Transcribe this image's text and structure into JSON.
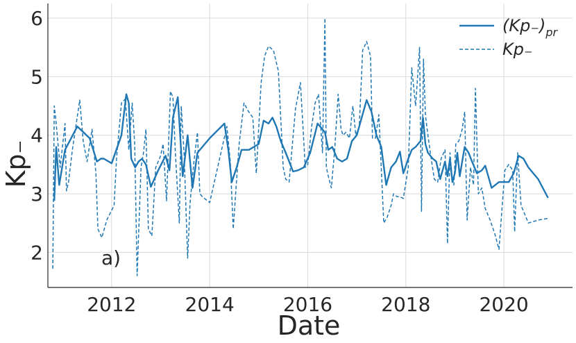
{
  "chart_data": {
    "type": "line",
    "title": "",
    "xlabel": "Date",
    "ylabel": "Kp₋",
    "xlim": [
      2010.7,
      2021.4
    ],
    "ylim": [
      1.4,
      6.25
    ],
    "xticks": [
      2012,
      2014,
      2016,
      2018,
      2020
    ],
    "xtick_labels": [
      "2012",
      "2014",
      "2016",
      "2018",
      "2020"
    ],
    "yticks": [
      2,
      3,
      4,
      5,
      6
    ],
    "ytick_labels": [
      "2",
      "3",
      "4",
      "5",
      "6"
    ],
    "grid": true,
    "legend_position": "top-right",
    "annotation": "a)",
    "color": "#1f77b4",
    "series": [
      {
        "name": "(Kp₋)pr",
        "legend_main": "(Kp₋)",
        "legend_sub": "pr",
        "style": "solid",
        "x": [
          2010.83,
          2010.87,
          2010.93,
          2011.05,
          2011.3,
          2011.55,
          2011.7,
          2011.78,
          2011.84,
          2012.0,
          2012.2,
          2012.3,
          2012.35,
          2012.4,
          2012.48,
          2012.55,
          2012.62,
          2012.7,
          2012.8,
          2012.95,
          2013.1,
          2013.18,
          2013.25,
          2013.35,
          2013.45,
          2013.55,
          2013.65,
          2013.75,
          2014.0,
          2014.3,
          2014.38,
          2014.45,
          2014.55,
          2014.65,
          2014.8,
          2015.0,
          2015.1,
          2015.2,
          2015.28,
          2015.36,
          2015.45,
          2015.55,
          2015.7,
          2015.8,
          2015.92,
          2016.05,
          2016.2,
          2016.35,
          2016.42,
          2016.5,
          2016.6,
          2016.7,
          2016.8,
          2016.9,
          2017.0,
          2017.1,
          2017.2,
          2017.3,
          2017.4,
          2017.5,
          2017.6,
          2017.7,
          2017.8,
          2017.88,
          2017.95,
          2018.05,
          2018.12,
          2018.2,
          2018.3,
          2018.35,
          2018.4,
          2018.45,
          2018.55,
          2018.62,
          2018.7,
          2018.75,
          2018.8,
          2018.85,
          2018.9,
          2018.95,
          2019.0,
          2019.05,
          2019.1,
          2019.15,
          2019.2,
          2019.28,
          2019.35,
          2019.45,
          2019.55,
          2019.62,
          2019.75,
          2019.9,
          2020.1,
          2020.2,
          2020.3,
          2020.4,
          2020.5,
          2020.7,
          2020.9
        ],
        "y": [
          2.88,
          3.8,
          3.15,
          3.75,
          4.15,
          3.95,
          3.55,
          3.6,
          3.6,
          3.52,
          4.0,
          4.7,
          4.55,
          3.6,
          3.45,
          3.55,
          3.6,
          3.5,
          3.12,
          3.4,
          3.65,
          3.4,
          4.3,
          4.65,
          3.3,
          4.0,
          3.1,
          3.7,
          3.95,
          4.2,
          3.75,
          3.2,
          3.45,
          3.75,
          3.75,
          3.85,
          4.25,
          4.2,
          4.3,
          4.15,
          3.9,
          3.7,
          3.38,
          3.4,
          3.45,
          3.7,
          4.2,
          4.05,
          3.75,
          3.8,
          3.6,
          3.55,
          3.6,
          3.9,
          4.0,
          4.3,
          4.6,
          4.4,
          4.0,
          3.8,
          3.15,
          3.45,
          3.55,
          3.72,
          3.35,
          3.6,
          3.75,
          3.8,
          3.9,
          4.3,
          3.85,
          3.7,
          3.6,
          3.55,
          3.25,
          3.4,
          3.55,
          3.3,
          3.6,
          3.2,
          3.35,
          3.7,
          3.3,
          3.55,
          3.8,
          3.7,
          3.55,
          3.35,
          3.4,
          3.48,
          3.1,
          3.2,
          3.2,
          3.35,
          3.65,
          3.6,
          3.45,
          3.25,
          2.93
        ]
      },
      {
        "name": "Kp₋",
        "legend_main": "Kp₋",
        "legend_sub": "",
        "style": "dashed",
        "x": [
          2010.8,
          2010.83,
          2010.86,
          2010.95,
          2011.05,
          2011.08,
          2011.12,
          2011.2,
          2011.35,
          2011.42,
          2011.5,
          2011.6,
          2011.68,
          2011.72,
          2011.8,
          2011.9,
          2012.05,
          2012.1,
          2012.2,
          2012.28,
          2012.35,
          2012.42,
          2012.47,
          2012.52,
          2012.6,
          2012.65,
          2012.7,
          2012.75,
          2012.82,
          2012.9,
          2013.0,
          2013.05,
          2013.12,
          2013.2,
          2013.25,
          2013.3,
          2013.38,
          2013.42,
          2013.48,
          2013.55,
          2013.6,
          2013.68,
          2013.75,
          2013.8,
          2013.85,
          2014.0,
          2014.35,
          2014.42,
          2014.48,
          2014.55,
          2014.6,
          2014.7,
          2014.78,
          2014.88,
          2014.95,
          2015.05,
          2015.12,
          2015.2,
          2015.3,
          2015.4,
          2015.5,
          2015.55,
          2015.62,
          2015.75,
          2015.85,
          2015.95,
          2016.0,
          2016.08,
          2016.15,
          2016.22,
          2016.3,
          2016.35,
          2016.38,
          2016.42,
          2016.48,
          2016.55,
          2016.62,
          2016.68,
          2016.72,
          2016.78,
          2016.85,
          2016.92,
          2016.98,
          2017.05,
          2017.12,
          2017.2,
          2017.28,
          2017.32,
          2017.38,
          2017.45,
          2017.55,
          2017.62,
          2017.7,
          2017.75,
          2017.82,
          2017.88,
          2017.95,
          2018.05,
          2018.12,
          2018.2,
          2018.28,
          2018.32,
          2018.36,
          2018.4,
          2018.45,
          2018.5,
          2018.58,
          2018.65,
          2018.72,
          2018.8,
          2018.85,
          2018.9,
          2018.94,
          2018.98,
          2019.02,
          2019.08,
          2019.15,
          2019.2,
          2019.25,
          2019.32,
          2019.38,
          2019.42,
          2019.48,
          2019.55,
          2019.62,
          2019.72,
          2019.82,
          2019.9,
          2020.02,
          2020.1,
          2020.18,
          2020.22,
          2020.28,
          2020.35,
          2020.5,
          2020.7,
          2020.9
        ],
        "y": [
          1.72,
          4.5,
          4.28,
          3.45,
          4.2,
          3.05,
          3.2,
          3.75,
          4.6,
          3.9,
          3.55,
          4.1,
          3.35,
          2.4,
          2.25,
          2.55,
          2.8,
          3.6,
          4.55,
          4.62,
          3.75,
          4.55,
          3.85,
          1.6,
          3.45,
          3.7,
          4.1,
          2.4,
          2.28,
          3.45,
          3.65,
          3.85,
          2.88,
          4.75,
          4.65,
          3.7,
          2.5,
          4.5,
          3.65,
          1.9,
          2.85,
          3.55,
          4.05,
          3.0,
          2.95,
          2.85,
          4.15,
          3.55,
          2.4,
          3.25,
          3.85,
          4.55,
          4.42,
          4.3,
          3.35,
          4.9,
          5.35,
          5.52,
          5.45,
          5.1,
          3.45,
          3.25,
          3.2,
          4.45,
          4.9,
          3.45,
          3.5,
          4.15,
          4.55,
          4.7,
          3.7,
          6.0,
          3.45,
          3.3,
          3.1,
          3.75,
          4.7,
          4.1,
          4.0,
          4.05,
          3.95,
          4.5,
          4.0,
          4.15,
          5.45,
          5.6,
          5.35,
          3.95,
          3.95,
          4.35,
          2.5,
          2.6,
          2.8,
          3.0,
          2.95,
          2.95,
          2.92,
          3.45,
          5.15,
          4.5,
          5.5,
          2.7,
          5.3,
          4.35,
          4.0,
          3.7,
          3.25,
          3.2,
          3.6,
          3.75,
          2.15,
          3.7,
          3.3,
          3.15,
          3.85,
          3.9,
          4.1,
          4.4,
          2.55,
          3.45,
          3.15,
          4.8,
          3.0,
          3.1,
          2.75,
          2.55,
          2.3,
          2.05,
          3.4,
          3.5,
          3.4,
          2.35,
          3.7,
          2.8,
          2.5,
          2.55,
          2.58
        ]
      }
    ]
  }
}
